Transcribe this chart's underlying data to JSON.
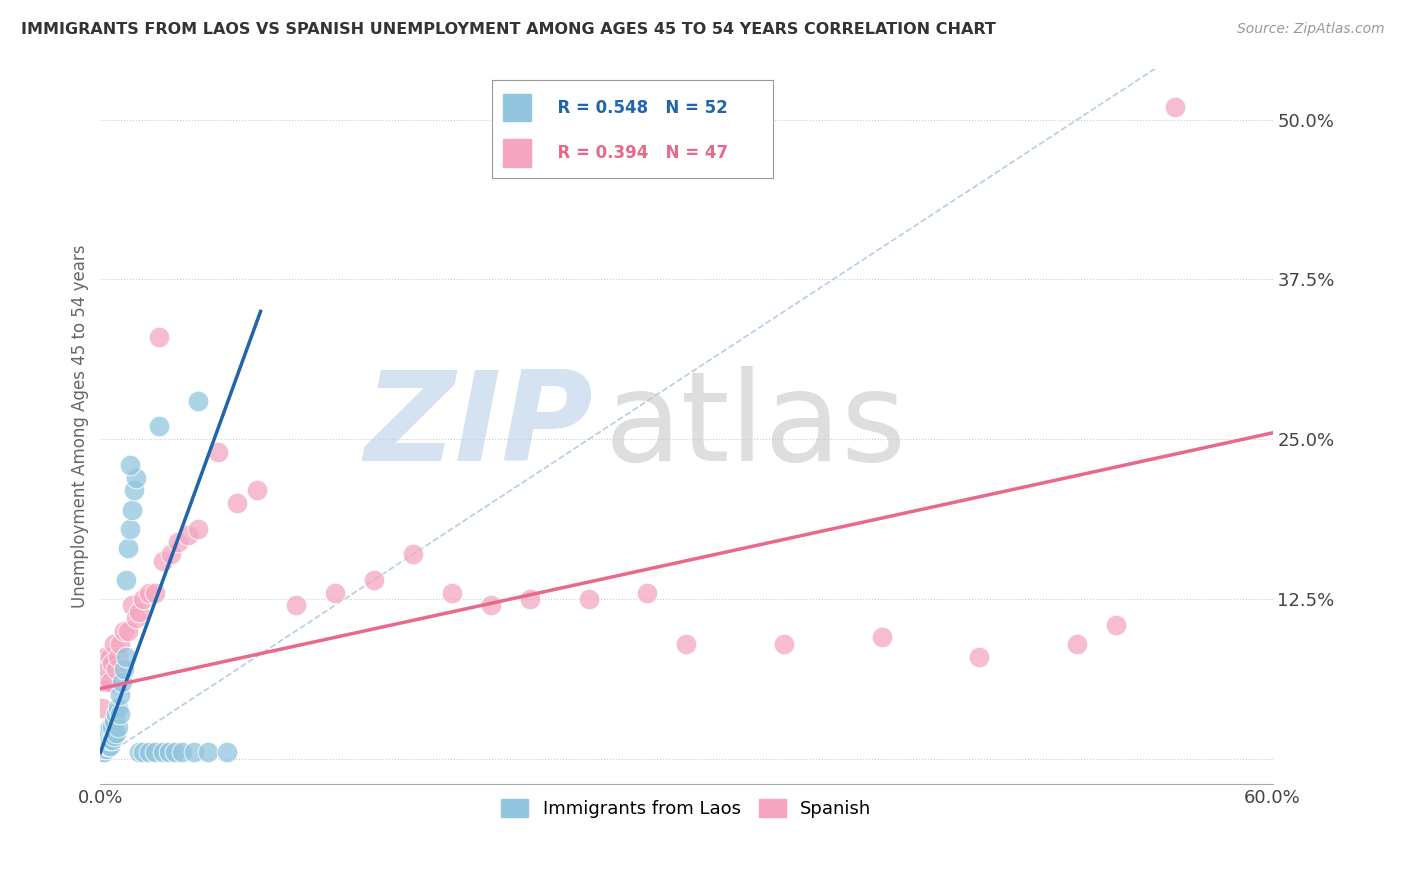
{
  "title": "IMMIGRANTS FROM LAOS VS SPANISH UNEMPLOYMENT AMONG AGES 45 TO 54 YEARS CORRELATION CHART",
  "source": "Source: ZipAtlas.com",
  "ylabel_label": "Unemployment Among Ages 45 to 54 years",
  "legend_label1": "Immigrants from Laos",
  "legend_label2": "Spanish",
  "r1_text": "R = 0.548",
  "n1_text": "N = 52",
  "r2_text": "R = 0.394",
  "n2_text": "N = 47",
  "blue_color": "#92c5de",
  "pink_color": "#f4a6c0",
  "blue_line_color": "#2166ac",
  "pink_line_color": "#e8698a",
  "diag_color": "#aec8e8",
  "xmin": 0.0,
  "xmax": 0.6,
  "ymin": -0.02,
  "ymax": 0.54,
  "ytick_vals": [
    0.0,
    0.125,
    0.25,
    0.375,
    0.5
  ],
  "ytick_labels": [
    "",
    "12.5%",
    "25.0%",
    "37.5%",
    "50.0%"
  ],
  "blue_line_x": [
    0.0,
    0.082
  ],
  "blue_line_y": [
    0.005,
    0.35
  ],
  "pink_line_x": [
    0.0,
    0.6
  ],
  "pink_line_y": [
    0.055,
    0.255
  ],
  "diag_line_x": [
    0.0,
    0.54
  ],
  "diag_line_y": [
    0.0,
    0.54
  ],
  "blue_x": [
    0.001,
    0.001,
    0.001,
    0.001,
    0.002,
    0.002,
    0.002,
    0.002,
    0.002,
    0.003,
    0.003,
    0.003,
    0.003,
    0.004,
    0.004,
    0.004,
    0.005,
    0.005,
    0.005,
    0.006,
    0.006,
    0.007,
    0.007,
    0.008,
    0.008,
    0.009,
    0.009,
    0.01,
    0.01,
    0.011,
    0.012,
    0.013,
    0.013,
    0.014,
    0.015,
    0.016,
    0.017,
    0.018,
    0.02,
    0.022,
    0.025,
    0.028,
    0.032,
    0.035,
    0.038,
    0.042,
    0.048,
    0.055,
    0.065,
    0.015,
    0.03,
    0.05
  ],
  "blue_y": [
    0.005,
    0.008,
    0.01,
    0.012,
    0.005,
    0.008,
    0.01,
    0.015,
    0.02,
    0.008,
    0.012,
    0.015,
    0.02,
    0.01,
    0.015,
    0.02,
    0.01,
    0.015,
    0.025,
    0.015,
    0.025,
    0.018,
    0.03,
    0.02,
    0.035,
    0.025,
    0.04,
    0.035,
    0.05,
    0.06,
    0.07,
    0.08,
    0.14,
    0.165,
    0.18,
    0.195,
    0.21,
    0.22,
    0.005,
    0.005,
    0.005,
    0.005,
    0.005,
    0.005,
    0.005,
    0.005,
    0.005,
    0.005,
    0.005,
    0.23,
    0.26,
    0.28
  ],
  "pink_x": [
    0.001,
    0.001,
    0.002,
    0.002,
    0.003,
    0.003,
    0.004,
    0.005,
    0.005,
    0.006,
    0.007,
    0.008,
    0.009,
    0.01,
    0.012,
    0.014,
    0.016,
    0.018,
    0.02,
    0.022,
    0.025,
    0.028,
    0.032,
    0.036,
    0.04,
    0.045,
    0.05,
    0.06,
    0.07,
    0.08,
    0.1,
    0.12,
    0.14,
    0.16,
    0.18,
    0.2,
    0.22,
    0.25,
    0.28,
    0.3,
    0.35,
    0.4,
    0.45,
    0.5,
    0.52,
    0.55,
    0.03
  ],
  "pink_y": [
    0.04,
    0.06,
    0.06,
    0.08,
    0.06,
    0.08,
    0.07,
    0.06,
    0.08,
    0.075,
    0.09,
    0.07,
    0.08,
    0.09,
    0.1,
    0.1,
    0.12,
    0.11,
    0.115,
    0.125,
    0.13,
    0.13,
    0.155,
    0.16,
    0.17,
    0.175,
    0.18,
    0.24,
    0.2,
    0.21,
    0.12,
    0.13,
    0.14,
    0.16,
    0.13,
    0.12,
    0.125,
    0.125,
    0.13,
    0.09,
    0.09,
    0.095,
    0.08,
    0.09,
    0.105,
    0.51,
    0.33
  ]
}
